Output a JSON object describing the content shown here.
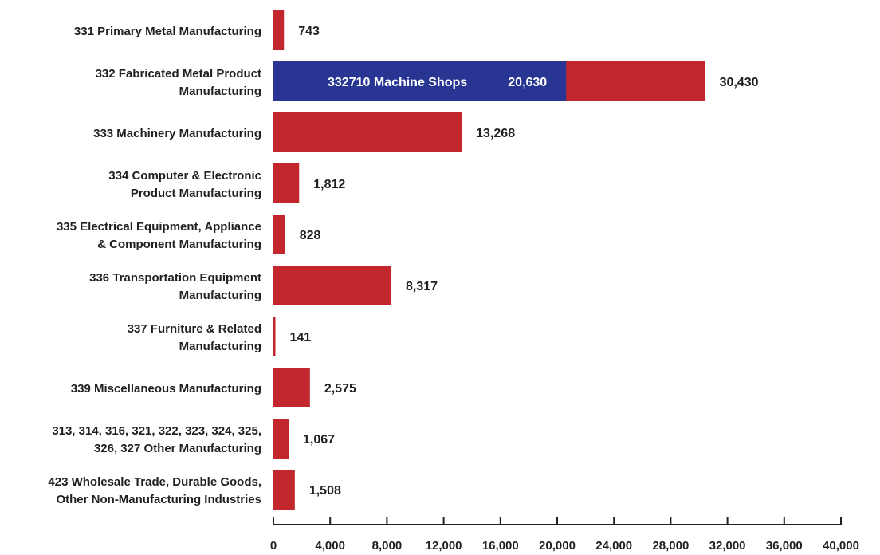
{
  "chart_data": {
    "type": "bar",
    "orientation": "horizontal",
    "stacked": true,
    "title": "",
    "xlabel": "",
    "ylabel": "",
    "xlim": [
      0,
      40000
    ],
    "x_ticks": [
      "0",
      "4,000",
      "8,000",
      "12,000",
      "16,000",
      "20,000",
      "24,000",
      "28,000",
      "32,000",
      "36,000",
      "40,000"
    ],
    "grid": false,
    "colors": {
      "bar": "#c1272d",
      "highlight": "#283593",
      "text": "#231f20",
      "highlight_text": "#ffffff"
    },
    "categories": [
      [
        "331 Primary Metal Manufacturing"
      ],
      [
        "332 Fabricated Metal Product",
        "Manufacturing"
      ],
      [
        "333 Machinery Manufacturing"
      ],
      [
        "334 Computer & Electronic",
        "Product Manufacturing"
      ],
      [
        "335 Electrical Equipment, Appliance",
        "& Component Manufacturing"
      ],
      [
        "336 Transportation Equipment",
        "Manufacturing"
      ],
      [
        "337 Furniture & Related",
        "Manufacturing"
      ],
      [
        "339 Miscellaneous Manufacturing"
      ],
      [
        "313, 314, 316, 321, 322, 323, 324, 325,",
        "326, 327 Other Manufacturing"
      ],
      [
        "423 Wholesale Trade, Durable Goods,",
        "Other Non-Manufacturing Industries"
      ]
    ],
    "values": [
      743,
      30430,
      13268,
      1812,
      828,
      8317,
      141,
      2575,
      1067,
      1508
    ],
    "value_labels": [
      "743",
      "30,430",
      "13,268",
      "1,812",
      "828",
      "8,317",
      "141",
      "2,575",
      "1,067",
      "1,508"
    ],
    "highlight": {
      "category_index": 1,
      "label": "332710 Machine Shops",
      "value": 20630,
      "value_label": "20,630"
    }
  }
}
